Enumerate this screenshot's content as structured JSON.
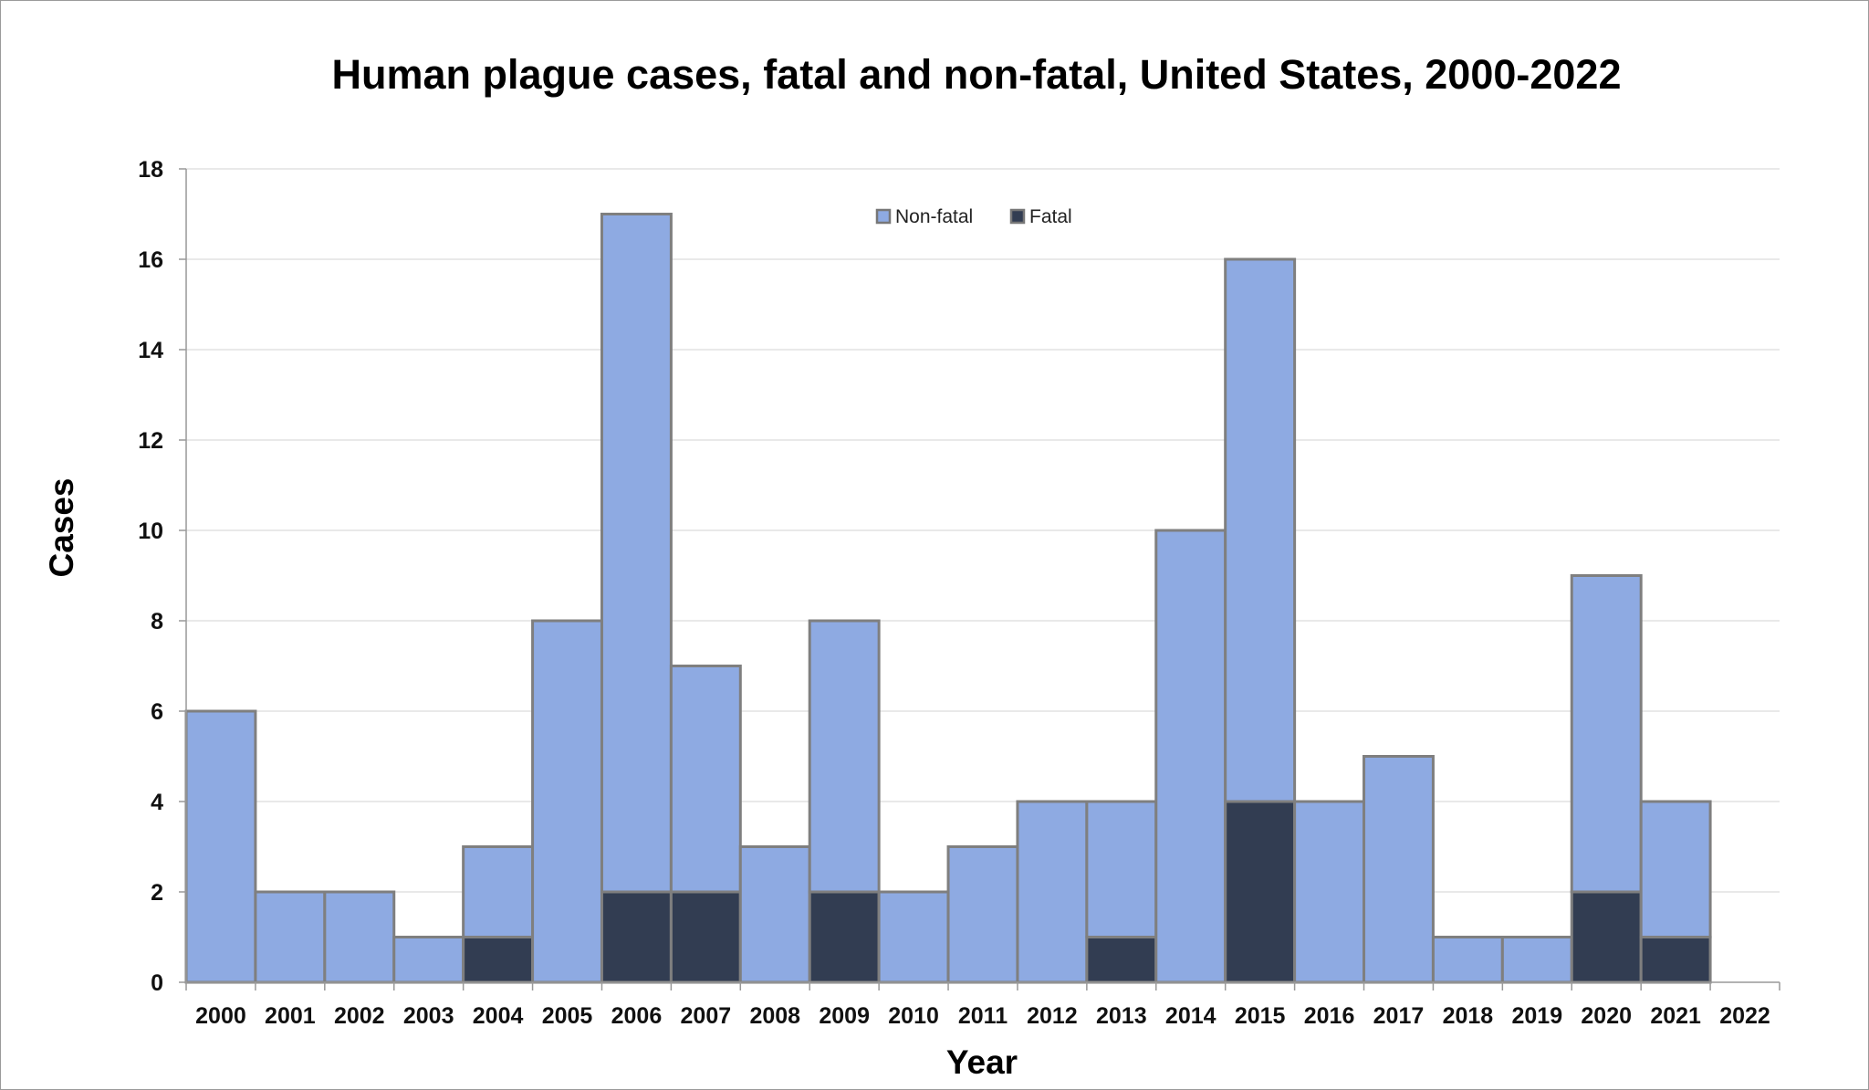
{
  "chart_data": {
    "type": "bar",
    "stacked": true,
    "title": "Human plague cases, fatal and non-fatal, United States, 2000-2022",
    "xlabel": "Year",
    "ylabel": "Cases",
    "ylim": [
      0,
      18
    ],
    "yticks": [
      0,
      2,
      4,
      6,
      8,
      10,
      12,
      14,
      16,
      18
    ],
    "grid": true,
    "legend_position": "top-center",
    "categories": [
      "2000",
      "2001",
      "2002",
      "2003",
      "2004",
      "2005",
      "2006",
      "2007",
      "2008",
      "2009",
      "2010",
      "2011",
      "2012",
      "2013",
      "2014",
      "2015",
      "2016",
      "2017",
      "2018",
      "2019",
      "2020",
      "2021",
      "2022"
    ],
    "series": [
      {
        "name": "Fatal",
        "color": "#323d52",
        "values": [
          0,
          0,
          0,
          0,
          1,
          0,
          2,
          2,
          0,
          2,
          0,
          0,
          0,
          1,
          0,
          4,
          0,
          0,
          0,
          0,
          2,
          1,
          0
        ]
      },
      {
        "name": "Non-fatal",
        "color": "#8eaae2",
        "values": [
          6,
          2,
          2,
          1,
          2,
          8,
          15,
          5,
          3,
          6,
          2,
          3,
          4,
          3,
          10,
          12,
          4,
          5,
          1,
          1,
          7,
          3,
          0
        ]
      }
    ],
    "legend_order": [
      "Non-fatal",
      "Fatal"
    ]
  }
}
